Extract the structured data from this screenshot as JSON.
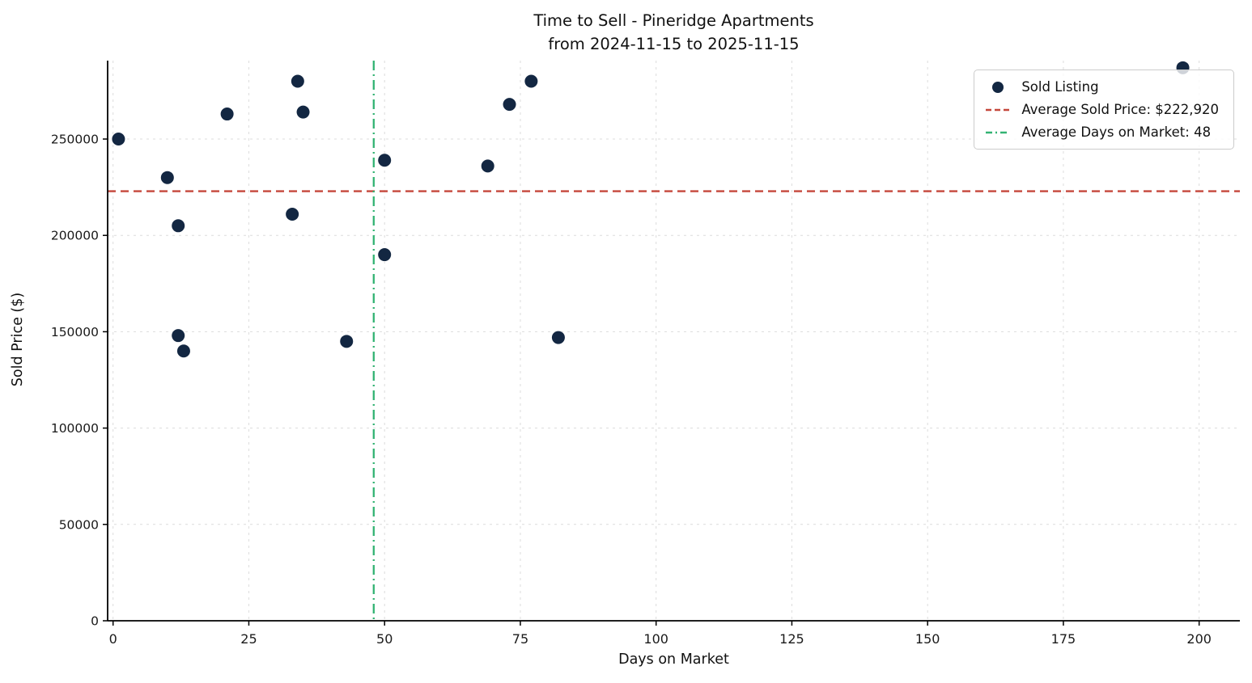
{
  "chart_data": {
    "type": "scatter",
    "title_line1": "Time to Sell - Pineridge Apartments",
    "title_line2": "from 2024-11-15 to 2025-11-15",
    "xlabel": "Days on Market",
    "ylabel": "Sold Price ($)",
    "xlim": [
      -1,
      207.5
    ],
    "ylim": [
      0,
      290700
    ],
    "x_ticks": [
      0,
      25,
      50,
      75,
      100,
      125,
      150,
      175,
      200
    ],
    "y_ticks": [
      0,
      50000,
      100000,
      150000,
      200000,
      250000
    ],
    "grid": true,
    "legend_position": "upper right",
    "points": [
      [
        1,
        250000
      ],
      [
        10,
        230000
      ],
      [
        12,
        205000
      ],
      [
        12,
        148000
      ],
      [
        13,
        140000
      ],
      [
        21,
        263000
      ],
      [
        33,
        211000
      ],
      [
        34,
        280000
      ],
      [
        35,
        264000
      ],
      [
        43,
        145000
      ],
      [
        50,
        239000
      ],
      [
        50,
        190000
      ],
      [
        69,
        236000
      ],
      [
        73,
        268000
      ],
      [
        77,
        280000
      ],
      [
        82,
        147000
      ],
      [
        197,
        287000
      ]
    ],
    "avg_sold_price": 222920,
    "avg_days_on_market": 48,
    "legend": {
      "sold_listing": "Sold Listing",
      "avg_price": "Average Sold Price: $222,920",
      "avg_days": "Average Days on Market: 48"
    },
    "colors": {
      "point": "#132742",
      "avg_price_line": "#c5473b",
      "avg_days_line": "#33b373",
      "grid": "#dcdcdc",
      "axis": "#000000",
      "text": "#1a1a1a"
    }
  }
}
